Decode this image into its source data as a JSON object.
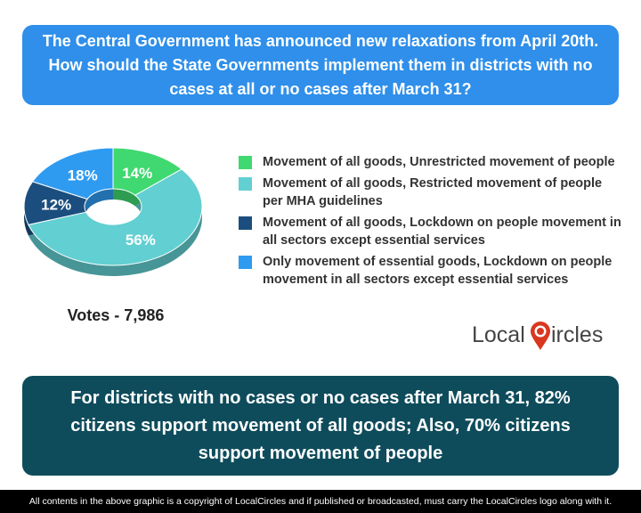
{
  "question": "The Central Government has announced new relaxations from April 20th. How should the State Governments implement them in districts with no cases at all or no cases after March 31?",
  "votes": "Votes - 7,986",
  "logo": {
    "left": "Local",
    "right": "ircles"
  },
  "finding": "For districts with no cases or no cases after March 31, 82% citizens support movement of all goods; Also, 70% citizens support movement of people",
  "footer": "All contents in the above graphic is a copyright of LocalCircles and if published or broadcasted, must carry the LocalCircles logo along with it.",
  "colors": {
    "header": "#2f8fea",
    "finding": "#0e4c5c",
    "footer": "#000000"
  },
  "chart_data": {
    "type": "pie",
    "variant": "donut",
    "title": "",
    "series": [
      {
        "name": "Movement of all goods, Unrestricted movement of people",
        "value": 14,
        "label": "14%",
        "color": "#40d870"
      },
      {
        "name": "Movement of all goods, Restricted movement of people per MHA guidelines",
        "value": 56,
        "label": "56%",
        "color": "#62cfd2"
      },
      {
        "name": "Movement of all goods, Lockdown on people movement in all sectors except essential services",
        "value": 12,
        "label": "12%",
        "color": "#1b4e7e"
      },
      {
        "name": "Only movement of essential goods, Lockdown on people movement in all sectors except essential services",
        "value": 18,
        "label": "18%",
        "color": "#2f9bf0"
      }
    ],
    "legend_position": "right"
  }
}
